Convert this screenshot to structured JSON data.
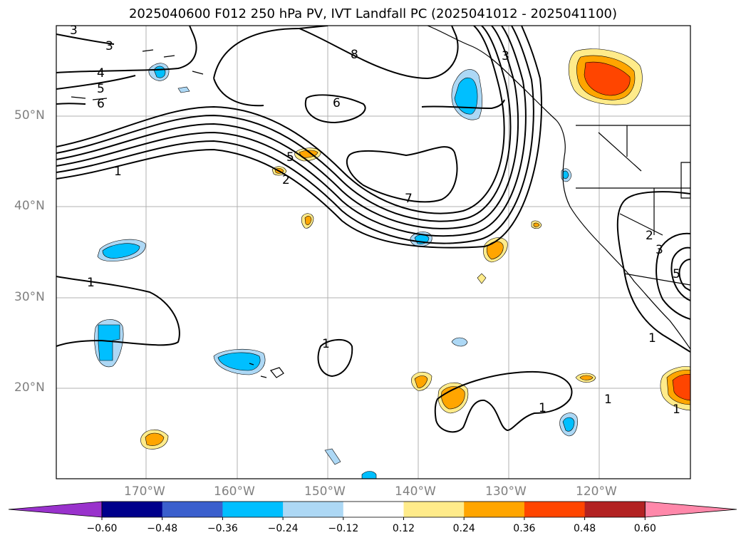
{
  "title": "2025040600 F012 250 hPa PV, IVT Landfall PC (2025041012 - 2025041100)",
  "lon_labels": [
    "170°W",
    "160°W",
    "150°W",
    "140°W",
    "130°W",
    "120°W"
  ],
  "lat_labels": [
    "50°N",
    "40°N",
    "30°N",
    "20°N"
  ],
  "contour_labels": [
    "3",
    "3",
    "4",
    "5",
    "6",
    "8",
    "6",
    "5",
    "1",
    "2",
    "7",
    "1",
    "1",
    "1",
    "1",
    "2",
    "3",
    "5",
    "1",
    "1",
    "3"
  ],
  "colorbar": {
    "ticks": [
      "−0.60",
      "−0.48",
      "−0.36",
      "−0.24",
      "−0.12",
      "0.12",
      "0.24",
      "0.36",
      "0.48",
      "0.60"
    ],
    "colors": [
      "#9932cc",
      "#00008b",
      "#3a5fcd",
      "#00bfff",
      "#add8f5",
      "#ffffff",
      "#ffeb8a",
      "#ffa500",
      "#ff4500",
      "#b22222",
      "#ff88aa"
    ]
  },
  "colors": {
    "strong_blue": "#00bfff",
    "light_blue": "#add8f5",
    "light_orange": "#ffeb8a",
    "orange": "#ffa500",
    "red_orange": "#ff4500",
    "grid": "#b0b0b0"
  }
}
